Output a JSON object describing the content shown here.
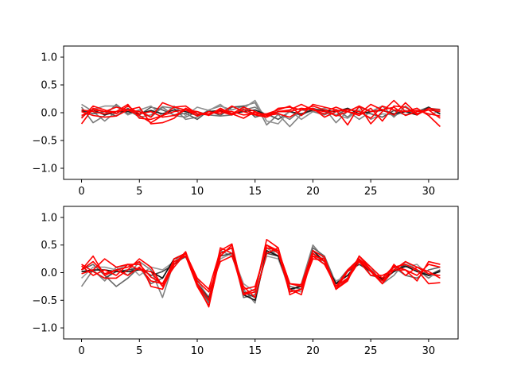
{
  "chart_data": [
    {
      "type": "line",
      "x": [
        0,
        1,
        2,
        3,
        4,
        5,
        6,
        7,
        8,
        9,
        10,
        11,
        12,
        13,
        14,
        15,
        16,
        17,
        18,
        19,
        20,
        21,
        22,
        23,
        24,
        25,
        26,
        27,
        28,
        29,
        30,
        31
      ],
      "xlim": [
        -1.55,
        32.55
      ],
      "ylim": [
        -1.2,
        1.2
      ],
      "xticks": [
        0,
        5,
        10,
        15,
        20,
        25,
        30
      ],
      "yticks": [
        1.0,
        0.5,
        0.0,
        -0.5,
        -1.0
      ],
      "ytick_labels": [
        "1.0",
        "0.5",
        "0.0",
        "−0.5",
        "−1.0"
      ],
      "grid": false,
      "series": [
        {
          "color": "#808080",
          "values": [
            0.15,
            0.02,
            -0.15,
            0.02,
            0.05,
            -0.08,
            -0.04,
            0.11,
            0.08,
            -0.12,
            -0.08,
            0.05,
            0.12,
            0.05,
            0.12,
            0.18,
            -0.22,
            -0.03,
            -0.25,
            -0.03,
            0.04,
            0.08,
            -0.18,
            0.03,
            -0.12,
            0.02,
            0.12,
            -0.08,
            0.12,
            -0.04,
            0.08,
            0.02
          ]
        },
        {
          "color": "#555555",
          "values": [
            0.05,
            -0.02,
            0.02,
            -0.06,
            0.08,
            -0.04,
            0.1,
            0.05,
            -0.04,
            -0.01,
            -0.12,
            0.04,
            -0.05,
            0.1,
            0.12,
            -0.08,
            -0.02,
            -0.12,
            0.02,
            -0.05,
            0.08,
            0.02,
            -0.04,
            0.06,
            0.02,
            -0.02,
            -0.08,
            0.04,
            -0.04,
            0.02,
            0.1,
            -0.03
          ]
        },
        {
          "color": "#909090",
          "values": [
            -0.08,
            0.06,
            0.12,
            0.12,
            -0.04,
            0.05,
            0.12,
            -0.06,
            0.12,
            -0.05,
            0.1,
            0.04,
            0.15,
            -0.02,
            0.08,
            0.22,
            -0.15,
            -0.2,
            0.04,
            -0.12,
            0.02,
            0.08,
            -0.04,
            -0.1,
            0.05,
            -0.12,
            -0.02,
            -0.04,
            0.02,
            0.08,
            -0.05,
            0.04
          ]
        },
        {
          "color": "#777777",
          "values": [
            0.1,
            -0.18,
            -0.05,
            0.15,
            -0.02,
            0.05,
            -0.08,
            0.1,
            -0.05,
            -0.08,
            0.02,
            -0.04,
            -0.06,
            -0.04,
            0.05,
            0.1,
            -0.05,
            -0.01,
            -0.12,
            0.05,
            0.02,
            -0.04,
            0.06,
            -0.08,
            0.1,
            0.02,
            0.06,
            -0.06,
            0.04,
            -0.02,
            0.08,
            0.06
          ]
        },
        {
          "color": "#222222",
          "values": [
            0.02,
            0.05,
            -0.04,
            0.02,
            0.02,
            -0.02,
            0.04,
            -0.02,
            0.05,
            0.02,
            -0.05,
            0.02,
            0.04,
            -0.02,
            0.02,
            0.05,
            -0.04,
            0.02,
            0.02,
            -0.02,
            0.05,
            0.04,
            0.02,
            0.08,
            -0.02,
            0.02,
            0.04,
            -0.02,
            0.02,
            -0.04,
            0.1,
            -0.02
          ]
        },
        {
          "color": "#ff0000",
          "values": [
            -0.2,
            0.08,
            0.02,
            0.1,
            0.05,
            -0.05,
            -0.18,
            -0.05,
            0.1,
            0.05,
            -0.02,
            -0.02,
            0.05,
            -0.02,
            -0.1,
            0.02,
            -0.08,
            0.08,
            0.1,
            0.05,
            0.12,
            0.05,
            -0.06,
            0.02,
            0.12,
            -0.2,
            0.02,
            0.22,
            0.02,
            0.08,
            -0.05,
            -0.25
          ]
        },
        {
          "color": "#ff0000",
          "values": [
            0.05,
            0.02,
            -0.02,
            0.02,
            0.05,
            0.02,
            -0.08,
            0.18,
            0.1,
            0.12,
            -0.02,
            -0.04,
            0.05,
            0.02,
            -0.04,
            -0.02,
            -0.02,
            0.05,
            0.12,
            -0.05,
            0.15,
            0.1,
            0.05,
            0.02,
            -0.05,
            0.08,
            -0.15,
            0.12,
            0.1,
            -0.04,
            0.08,
            0.05
          ]
        },
        {
          "color": "#ff0000",
          "values": [
            -0.1,
            0.12,
            0.05,
            -0.02,
            0.12,
            -0.02,
            0.02,
            -0.08,
            -0.05,
            0.05,
            -0.06,
            0.02,
            -0.02,
            0.12,
            0.02,
            -0.04,
            -0.08,
            0.02,
            0.05,
            0.15,
            0.05,
            0.02,
            0.1,
            0.02,
            -0.02,
            0.15,
            0.05,
            0.1,
            -0.05,
            0.02,
            0.05,
            -0.1
          ]
        },
        {
          "color": "#ff0000",
          "values": [
            0.02,
            -0.05,
            -0.08,
            -0.06,
            0.05,
            0.1,
            -0.2,
            -0.18,
            -0.1,
            0.08,
            -0.02,
            -0.02,
            0.02,
            -0.04,
            0.06,
            -0.02,
            -0.04,
            0.02,
            0.02,
            0.08,
            0.05,
            -0.02,
            0.05,
            -0.22,
            0.12,
            0.02,
            0.05,
            -0.04,
            0.18,
            -0.02,
            0.05,
            0.02
          ]
        },
        {
          "color": "#ff0000",
          "values": [
            -0.05,
            0.05,
            0.02,
            0.02,
            0.15,
            -0.1,
            -0.12,
            -0.05,
            0.02,
            0.05,
            0.02,
            -0.05,
            0.08,
            -0.02,
            0.1,
            0.02,
            -0.05,
            -0.02,
            -0.08,
            0.05,
            0.08,
            -0.08,
            0.02,
            0.06,
            0.02,
            -0.1,
            0.12,
            0.05,
            0.02,
            0.04,
            -0.02,
            -0.06
          ]
        }
      ]
    },
    {
      "type": "line",
      "x": [
        0,
        1,
        2,
        3,
        4,
        5,
        6,
        7,
        8,
        9,
        10,
        11,
        12,
        13,
        14,
        15,
        16,
        17,
        18,
        19,
        20,
        21,
        22,
        23,
        24,
        25,
        26,
        27,
        28,
        29,
        30,
        31
      ],
      "xlim": [
        -1.55,
        32.55
      ],
      "ylim": [
        -1.2,
        1.2
      ],
      "xticks": [
        0,
        5,
        10,
        15,
        20,
        25,
        30
      ],
      "yticks": [
        1.0,
        0.5,
        0.0,
        -0.5,
        -1.0
      ],
      "ytick_labels": [
        "1.0",
        "0.5",
        "0.0",
        "−0.5",
        "−1.0"
      ],
      "grid": false,
      "series": [
        {
          "color": "#808080",
          "values": [
            -0.25,
            0.05,
            -0.15,
            0.1,
            -0.05,
            0.2,
            0.05,
            -0.45,
            0.2,
            0.28,
            -0.1,
            -0.5,
            0.4,
            0.3,
            -0.3,
            -0.55,
            0.45,
            0.3,
            -0.35,
            -0.2,
            0.5,
            0.25,
            -0.3,
            -0.1,
            0.3,
            0.1,
            -0.2,
            -0.05,
            0.2,
            0.05,
            -0.1,
            0.05
          ]
        },
        {
          "color": "#666666",
          "values": [
            0.05,
            0.15,
            -0.05,
            -0.25,
            -0.1,
            0.1,
            -0.2,
            -0.1,
            0.25,
            0.3,
            -0.2,
            -0.55,
            0.35,
            0.45,
            -0.45,
            -0.4,
            0.35,
            0.4,
            -0.25,
            -0.3,
            0.45,
            0.3,
            -0.2,
            0.05,
            0.25,
            -0.05,
            -0.1,
            0.1,
            -0.05,
            -0.1,
            0.05,
            0.1
          ]
        },
        {
          "color": "#999999",
          "values": [
            -0.1,
            0.1,
            0.1,
            0.05,
            0.15,
            -0.05,
            0.1,
            0.05,
            0.2,
            0.35,
            -0.15,
            -0.45,
            0.25,
            0.35,
            -0.2,
            -0.35,
            0.3,
            0.25,
            -0.3,
            -0.35,
            0.35,
            0.15,
            -0.15,
            -0.05,
            0.2,
            0.05,
            -0.15,
            0.05,
            0.1,
            0.15,
            -0.05,
            -0.05
          ]
        },
        {
          "color": "#444444",
          "values": [
            0.02,
            0.02,
            -0.1,
            0.02,
            0.05,
            0.08,
            -0.05,
            0.02,
            0.15,
            0.3,
            -0.2,
            -0.45,
            0.3,
            0.35,
            -0.35,
            -0.45,
            0.35,
            0.3,
            -0.3,
            -0.25,
            0.35,
            0.2,
            -0.25,
            0.02,
            0.15,
            0.02,
            -0.15,
            0.02,
            0.15,
            0.05,
            -0.05,
            0.05
          ]
        },
        {
          "color": "#111111",
          "values": [
            0.02,
            0.05,
            0.05,
            0.02,
            0.02,
            0.05,
            0.02,
            -0.1,
            0.25,
            0.35,
            -0.2,
            -0.5,
            0.35,
            0.45,
            -0.4,
            -0.5,
            0.4,
            0.3,
            -0.3,
            -0.25,
            0.4,
            0.2,
            -0.2,
            -0.05,
            0.2,
            0.02,
            -0.12,
            0.02,
            0.12,
            0.02,
            -0.05,
            0.02
          ]
        },
        {
          "color": "#ff0000",
          "values": [
            0.15,
            0.02,
            -0.1,
            -0.1,
            0.05,
            0.25,
            0.1,
            -0.25,
            0.2,
            0.3,
            -0.25,
            -0.6,
            0.3,
            0.5,
            -0.4,
            -0.35,
            0.6,
            0.45,
            -0.3,
            -0.4,
            0.35,
            0.2,
            -0.3,
            -0.15,
            0.3,
            0.1,
            -0.1,
            0.12,
            0.05,
            -0.05,
            0.15,
            0.1
          ]
        },
        {
          "color": "#ff0000",
          "values": [
            0.05,
            0.3,
            -0.05,
            0.05,
            0.1,
            0.2,
            -0.25,
            -0.3,
            0.15,
            0.38,
            -0.2,
            -0.62,
            0.35,
            0.45,
            -0.3,
            -0.25,
            0.45,
            0.4,
            -0.2,
            -0.25,
            0.3,
            0.15,
            -0.25,
            0.05,
            0.25,
            0.05,
            -0.15,
            0.1,
            0.15,
            0.05,
            -0.2,
            -0.18
          ]
        },
        {
          "color": "#ff0000",
          "values": [
            -0.02,
            0.05,
            0.25,
            0.1,
            0.15,
            0.15,
            -0.08,
            -0.2,
            0.1,
            0.35,
            -0.1,
            -0.3,
            0.4,
            0.52,
            -0.38,
            -0.3,
            0.5,
            0.35,
            -0.35,
            -0.3,
            0.3,
            0.25,
            -0.3,
            -0.12,
            0.2,
            -0.05,
            -0.05,
            0.05,
            0.05,
            -0.15,
            0.2,
            0.15
          ]
        },
        {
          "color": "#ff0000",
          "values": [
            0.12,
            -0.05,
            0.05,
            -0.05,
            0.15,
            0.05,
            0.02,
            -0.25,
            0.25,
            0.35,
            -0.15,
            -0.35,
            0.2,
            0.3,
            -0.25,
            -0.45,
            0.35,
            0.45,
            -0.4,
            -0.3,
            0.25,
            0.22,
            -0.25,
            -0.1,
            0.3,
            0.05,
            -0.2,
            0.15,
            -0.05,
            0.1,
            -0.02,
            -0.05
          ]
        },
        {
          "color": "#ff0000",
          "values": [
            0.05,
            0.2,
            -0.02,
            0.05,
            -0.05,
            0.1,
            -0.15,
            -0.2,
            0.2,
            0.3,
            -0.2,
            -0.5,
            0.45,
            0.35,
            -0.4,
            -0.3,
            0.5,
            0.4,
            -0.2,
            -0.22,
            0.4,
            0.28,
            -0.3,
            0.02,
            0.22,
            0.02,
            -0.2,
            0.05,
            0.2,
            0.1,
            0.02,
            -0.1
          ]
        }
      ]
    }
  ]
}
